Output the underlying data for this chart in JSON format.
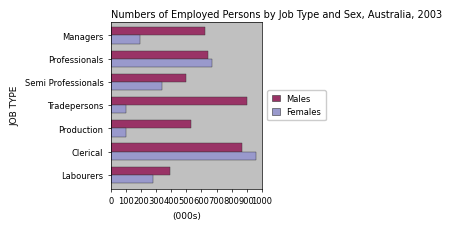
{
  "title": "Numbers of Employed Persons by Job Type and Sex, Australia, 2003",
  "categories": [
    "Labourers",
    "Clerical",
    "Production",
    "Tradepersons",
    "Semi Professionals",
    "Professionals",
    "Managers"
  ],
  "males": [
    390,
    870,
    530,
    900,
    500,
    645,
    620
  ],
  "females": [
    280,
    960,
    100,
    100,
    340,
    670,
    190
  ],
  "male_color": "#993366",
  "female_color": "#9999CC",
  "bar_edge_color": "#333333",
  "xlabel": "(000s)",
  "ylabel": "JOB TYPE",
  "xlim": [
    0,
    1000
  ],
  "xticks": [
    0,
    100,
    200,
    300,
    400,
    500,
    600,
    700,
    800,
    900,
    1000
  ],
  "bg_color": "#C0C0C0",
  "fig_bg_color": "#FFFFFF",
  "legend_labels": [
    "Males",
    "Females"
  ],
  "title_fontsize": 7.0,
  "axis_fontsize": 6.5,
  "tick_fontsize": 6.0
}
